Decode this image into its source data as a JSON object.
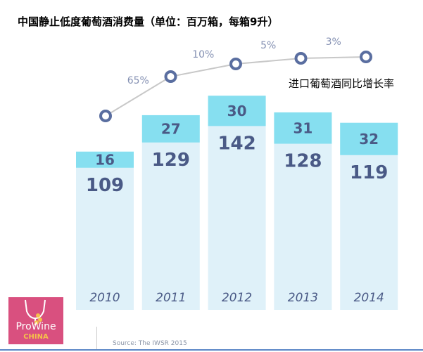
{
  "title": "中国静止低度葡萄酒消费量（单位：百万箱，每箱9升）",
  "chart_data": {
    "type": "bar",
    "stacked": true,
    "title": "中国静止低度葡萄酒消费量（单位：百万箱，每箱9升）",
    "categories": [
      "2010",
      "2011",
      "2012",
      "2013",
      "2014"
    ],
    "series": [
      {
        "values": [
          109,
          129,
          142,
          128,
          119
        ],
        "color": "#dff1f9"
      },
      {
        "values": [
          16,
          27,
          30,
          31,
          32
        ],
        "color": "#86dff0"
      }
    ],
    "line_series": {
      "name": "进口葡萄酒同比增长率",
      "values": [
        null,
        65,
        10,
        5,
        3
      ],
      "labels": [
        "",
        "65%",
        "10%",
        "5%",
        "3%"
      ],
      "color": "#5a6ea0"
    },
    "grid": false
  },
  "source": "Source: The IWSR 2015",
  "logo": {
    "line1": "ProWine",
    "line2": "CHINA"
  }
}
